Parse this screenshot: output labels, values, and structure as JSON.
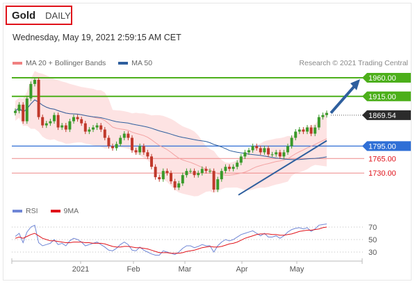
{
  "header": {
    "symbol": "Gold",
    "timeframe": "DAILY",
    "datetime": "Wednesday, May 19, 2021 2:59:15 AM CET"
  },
  "legend_main": [
    {
      "label": "MA 20 + Bollinger Bands",
      "color": "#f08080"
    },
    {
      "label": "MA 50",
      "color": "#2e5f9e"
    }
  ],
  "legend_rsi": [
    {
      "label": "RSI",
      "color": "#6f86d6"
    },
    {
      "label": "9MA",
      "color": "#e0121a"
    }
  ],
  "credit": "Research © 2021 Trading Central",
  "colors": {
    "bullish": "#3a9a2a",
    "bearish": "#c0392b",
    "support_blue": "#2f6fd6",
    "resistance_green": "#4caf1a",
    "band_fill": "#fde3e3"
  },
  "chart_data": [
    {
      "type": "candlestick",
      "title": "Gold DAILY",
      "x_tick_labels": [
        "2021",
        "Feb",
        "Mar",
        "Apr",
        "May"
      ],
      "ylim": [
        1670,
        1975
      ],
      "levels": [
        {
          "label": "1960.00",
          "value": 1960,
          "style": "green-line",
          "badge": "green"
        },
        {
          "label": "1915.00",
          "value": 1915,
          "style": "green-line",
          "badge": "green"
        },
        {
          "label": "1869.54",
          "value": 1869.54,
          "style": "dotted",
          "badge": "dark"
        },
        {
          "label": "1795.00",
          "value": 1795,
          "style": "blue-line",
          "badge": "blue"
        },
        {
          "label": "1765.00",
          "value": 1765,
          "style": "red-line",
          "badge": "none"
        },
        {
          "label": "1730.00",
          "value": 1730,
          "style": "red-line",
          "badge": "none"
        }
      ],
      "close_series": [
        1880,
        1895,
        1855,
        1910,
        1945,
        1955,
        1865,
        1845,
        1850,
        1855,
        1870,
        1840,
        1845,
        1835,
        1855,
        1865,
        1860,
        1850,
        1830,
        1835,
        1840,
        1845,
        1835,
        1815,
        1795,
        1790,
        1800,
        1815,
        1825,
        1815,
        1785,
        1780,
        1795,
        1780,
        1770,
        1745,
        1720,
        1715,
        1735,
        1730,
        1710,
        1695,
        1705,
        1725,
        1735,
        1735,
        1725,
        1730,
        1740,
        1735,
        1735,
        1690,
        1715,
        1735,
        1745,
        1740,
        1745,
        1755,
        1770,
        1780,
        1785,
        1795,
        1790,
        1780,
        1790,
        1775,
        1775,
        1780,
        1770,
        1780,
        1795,
        1815,
        1830,
        1835,
        1830,
        1840,
        1825,
        1840,
        1865,
        1870,
        1875
      ],
      "trendline": {
        "from": [
          1677,
          "Mar-31"
        ],
        "to": [
          1808,
          "May-18"
        ]
      },
      "projection_arrow": {
        "from": 1875,
        "to": 1960
      }
    },
    {
      "type": "line",
      "title": "RSI",
      "ylim": [
        20,
        80
      ],
      "y_ticks": [
        70,
        50,
        30
      ],
      "series": [
        {
          "name": "RSI",
          "values": [
            55,
            60,
            45,
            62,
            70,
            73,
            45,
            40,
            42,
            44,
            50,
            42,
            44,
            40,
            48,
            52,
            50,
            46,
            40,
            42,
            44,
            46,
            42,
            38,
            33,
            32,
            36,
            42,
            46,
            42,
            33,
            32,
            38,
            33,
            30,
            27,
            25,
            25,
            32,
            30,
            28,
            26,
            30,
            36,
            40,
            40,
            37,
            39,
            42,
            40,
            40,
            30,
            40,
            46,
            50,
            48,
            50,
            54,
            58,
            60,
            62,
            64,
            60,
            56,
            60,
            54,
            54,
            56,
            52,
            56,
            62,
            66,
            68,
            69,
            67,
            69,
            63,
            67,
            73,
            74,
            75
          ]
        },
        {
          "name": "9MA",
          "values": [
            52,
            54,
            52,
            55,
            58,
            60,
            56,
            52,
            50,
            48,
            48,
            47,
            46,
            45,
            45,
            46,
            46,
            46,
            45,
            45,
            44,
            44,
            44,
            43,
            41,
            39,
            38,
            38,
            39,
            39,
            38,
            37,
            37,
            36,
            35,
            33,
            31,
            29,
            29,
            29,
            28,
            28,
            28,
            29,
            31,
            32,
            33,
            35,
            37,
            38,
            39,
            38,
            38,
            39,
            41,
            43,
            44,
            46,
            49,
            52,
            54,
            56,
            58,
            59,
            59,
            59,
            58,
            58,
            57,
            57,
            58,
            59,
            61,
            63,
            64,
            65,
            65,
            66,
            67,
            69,
            70
          ]
        }
      ]
    }
  ]
}
